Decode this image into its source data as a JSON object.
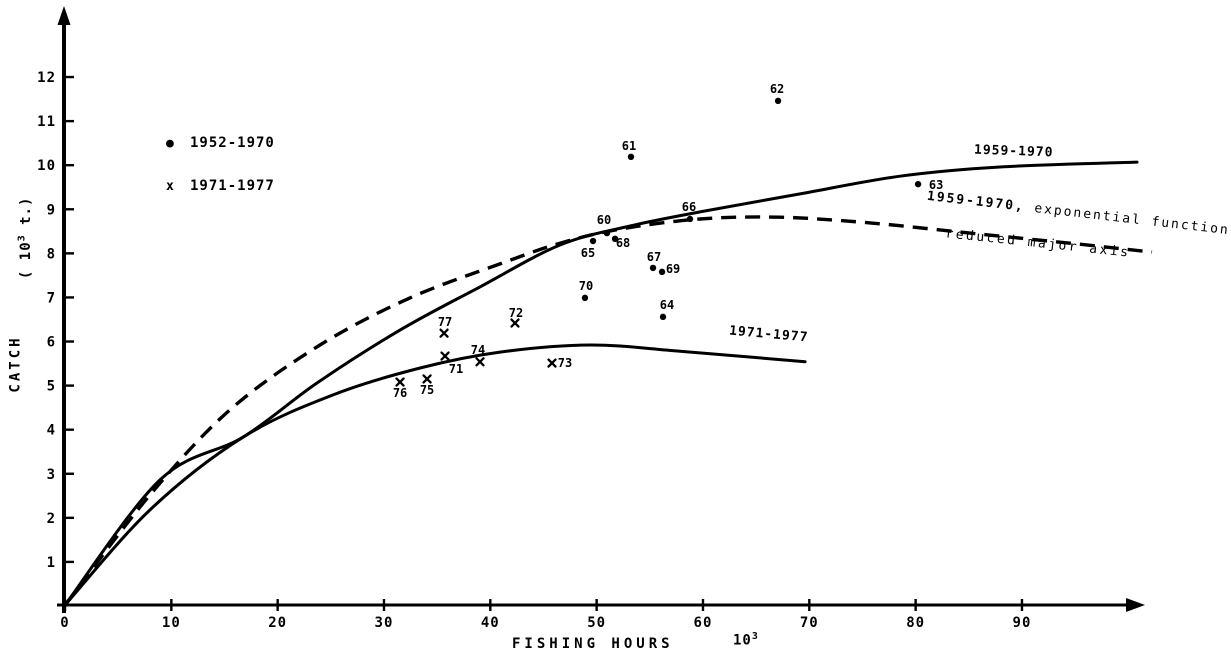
{
  "figure": {
    "paper_color": "#ffffff",
    "ink_color": "#000000"
  },
  "legend": {
    "items": [
      {
        "marker": "dot",
        "marker_glyph": "●",
        "label": "1952-1970"
      },
      {
        "marker": "x",
        "marker_glyph": "x",
        "label": "1971-1977"
      }
    ]
  },
  "axes": {
    "x": {
      "title": "FISHING HOURS",
      "unit": "10",
      "unit_exp": "3",
      "ticks": [
        0,
        10,
        20,
        30,
        40,
        50,
        60,
        70,
        80,
        90
      ]
    },
    "y": {
      "title": "CATCH",
      "unit_prefix": "( 10",
      "unit_exp": "3",
      "unit_suffix": " t.)",
      "ticks": [
        1,
        2,
        3,
        4,
        5,
        6,
        7,
        8,
        9,
        10,
        11,
        12
      ]
    }
  },
  "curve_labels": {
    "c1959": "1959-1970",
    "cexp_bold": "1959-1970,",
    "cexp_rest": " exponential function",
    "cexp_line2": "reduced major axis",
    "c1971": "1971-1977"
  },
  "chart_data": {
    "type": "scatter",
    "title": "",
    "xlabel": "FISHING HOURS (10^3)",
    "ylabel": "CATCH (10^3 t.)",
    "xlim": [
      0,
      103
    ],
    "ylim": [
      0,
      13.5
    ],
    "grid": false,
    "legend_position": "upper-left",
    "series": [
      {
        "name": "1952-1970",
        "marker": "dot",
        "points": [
          {
            "label": "60",
            "x": 50.97,
            "y": 8.46,
            "dx": -3,
            "dy": -13
          },
          {
            "label": "61",
            "x": 53.23,
            "y": 10.19,
            "dx": -2,
            "dy": -11
          },
          {
            "label": "62",
            "x": 67.06,
            "y": 11.46,
            "dx": -1,
            "dy": -12
          },
          {
            "label": "63",
            "x": 80.23,
            "y": 9.57,
            "dx": 18,
            "dy": 1
          },
          {
            "label": "64",
            "x": 56.24,
            "y": 6.56,
            "dx": 4,
            "dy": -12
          },
          {
            "label": "65",
            "x": 49.66,
            "y": 8.28,
            "dx": -5,
            "dy": 12
          },
          {
            "label": "66",
            "x": 58.78,
            "y": 8.78,
            "dx": -1,
            "dy": -12
          },
          {
            "label": "67",
            "x": 55.3,
            "y": 7.67,
            "dx": 1,
            "dy": -11
          },
          {
            "label": "68",
            "x": 51.73,
            "y": 8.33,
            "dx": 8,
            "dy": 4
          },
          {
            "label": "69",
            "x": 56.15,
            "y": 7.58,
            "dx": 11,
            "dy": -3
          },
          {
            "label": "70",
            "x": 48.9,
            "y": 6.99,
            "dx": 1,
            "dy": -12
          }
        ]
      },
      {
        "name": "1971-1977",
        "marker": "x",
        "points": [
          {
            "label": "71",
            "x": 35.74,
            "y": 5.67,
            "dx": 11,
            "dy": 13
          },
          {
            "label": "72",
            "x": 42.32,
            "y": 6.42,
            "dx": 1,
            "dy": -10
          },
          {
            "label": "73",
            "x": 45.8,
            "y": 5.51,
            "dx": 13,
            "dy": 0
          },
          {
            "label": "74",
            "x": 39.03,
            "y": 5.54,
            "dx": -2,
            "dy": -12
          },
          {
            "label": "75",
            "x": 34.05,
            "y": 5.15,
            "dx": 0,
            "dy": 11
          },
          {
            "label": "76",
            "x": 31.51,
            "y": 5.08,
            "dx": 0,
            "dy": 11
          },
          {
            "label": "77",
            "x": 35.65,
            "y": 6.19,
            "dx": 1,
            "dy": -11
          }
        ]
      }
    ],
    "curves": [
      {
        "name": "1959-1970",
        "style": "solid",
        "points": [
          [
            0,
            0.02
          ],
          [
            8.93,
            2.86
          ],
          [
            16.74,
            3.83
          ],
          [
            23.7,
            5.06
          ],
          [
            31.51,
            6.26
          ],
          [
            39.03,
            7.24
          ],
          [
            46.55,
            8.19
          ],
          [
            53.14,
            8.62
          ],
          [
            59.72,
            8.94
          ],
          [
            69.13,
            9.35
          ],
          [
            78.53,
            9.75
          ],
          [
            87.94,
            9.96
          ],
          [
            100.82,
            10.07
          ]
        ]
      },
      {
        "name": "1959-1970, exponential function, reduced major axis",
        "style": "dashed",
        "points": [
          [
            0,
            0.02
          ],
          [
            7.99,
            2.52
          ],
          [
            15.52,
            4.45
          ],
          [
            23.98,
            5.92
          ],
          [
            32.45,
            6.99
          ],
          [
            40.91,
            7.76
          ],
          [
            46.55,
            8.23
          ],
          [
            52.2,
            8.55
          ],
          [
            59.72,
            8.78
          ],
          [
            67.24,
            8.82
          ],
          [
            75.71,
            8.69
          ],
          [
            85.11,
            8.46
          ],
          [
            94.52,
            8.23
          ],
          [
            102.23,
            8.03
          ]
        ]
      },
      {
        "name": "1971-1977",
        "style": "solid",
        "points": [
          [
            0,
            0.02
          ],
          [
            7.99,
            2.18
          ],
          [
            16.74,
            3.83
          ],
          [
            25.21,
            4.79
          ],
          [
            33.4,
            5.4
          ],
          [
            40.91,
            5.76
          ],
          [
            49.37,
            5.92
          ],
          [
            57.84,
            5.78
          ],
          [
            69.6,
            5.54
          ]
        ]
      }
    ]
  }
}
